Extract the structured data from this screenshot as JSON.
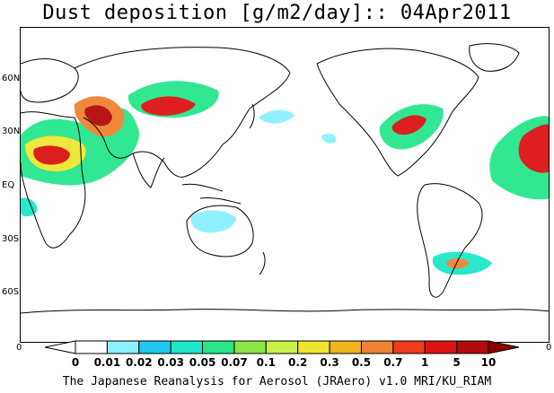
{
  "title": "Dust deposition [g/m2/day]:: 04Apr2011",
  "latitude_labels": [
    "60N",
    "30N",
    "EQ",
    "30S",
    "60S"
  ],
  "edge_zero_left": "0",
  "edge_zero_right": "0",
  "colorbar": {
    "labels": [
      "0",
      "0.01",
      "0.02",
      "0.03",
      "0.05",
      "0.07",
      "0.1",
      "0.2",
      "0.3",
      "0.5",
      "0.7",
      "1",
      "5",
      "10"
    ],
    "colors": [
      "#ffffff",
      "#ffffff",
      "#8cf0ff",
      "#1ec8ef",
      "#1ee6c8",
      "#28e68c",
      "#8ce646",
      "#c8f046",
      "#f0e632",
      "#f0b41e",
      "#f08232",
      "#f03c1e",
      "#dc1414",
      "#b40a0a",
      "#8c0000"
    ]
  },
  "credit": "The Japanese Reanalysis for Aerosol (JRAero) v1.0 MRI/KU_RIAM"
}
